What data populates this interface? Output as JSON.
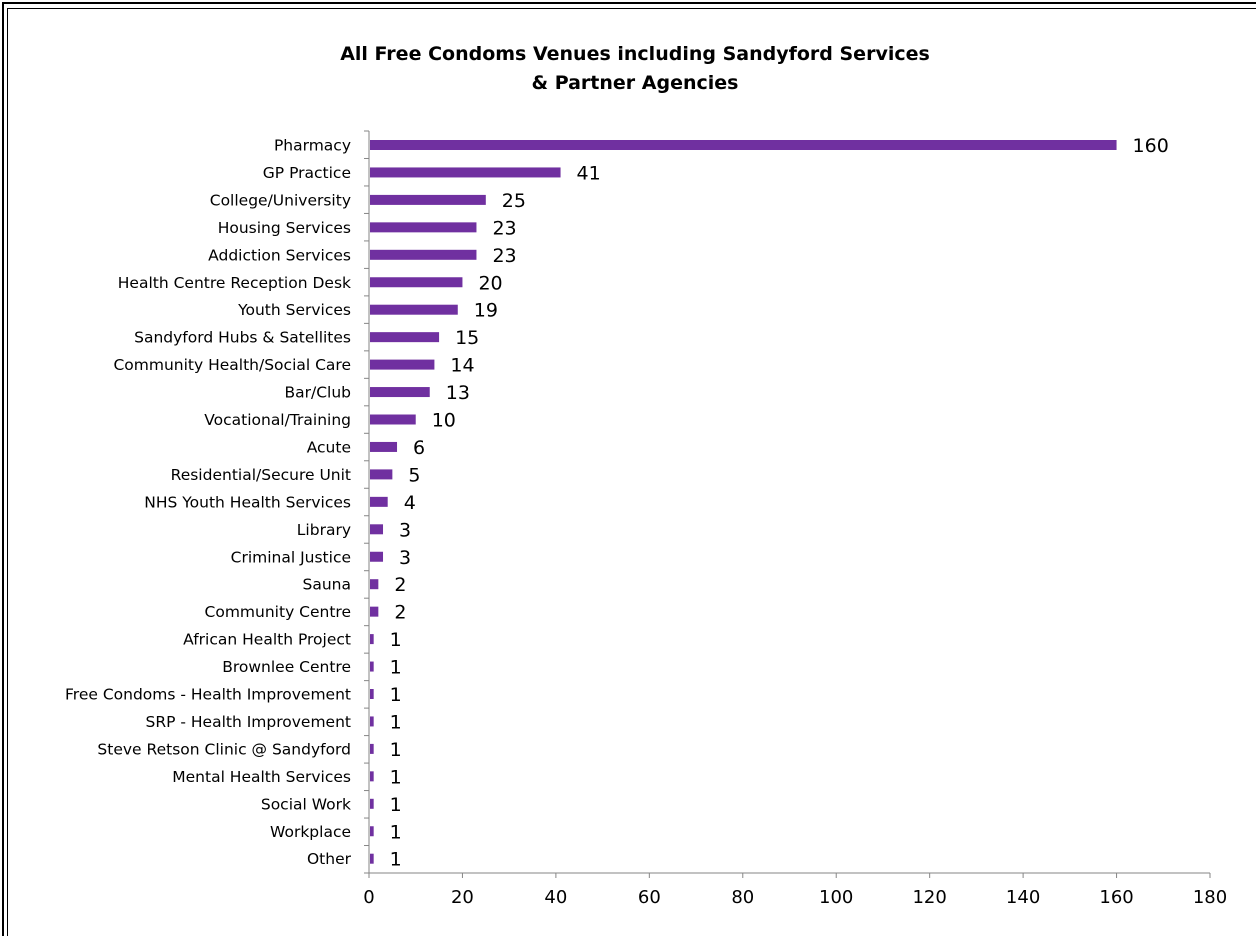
{
  "chart_data": {
    "type": "bar",
    "orientation": "horizontal",
    "title_line1": "All Free Condoms Venues including Sandyford Services",
    "title_line2": "& Partner Agencies",
    "xlabel": "",
    "ylabel": "",
    "xlim": [
      0,
      180
    ],
    "x_ticks": [
      0,
      20,
      40,
      60,
      80,
      100,
      120,
      140,
      160,
      180
    ],
    "grid": false,
    "bar_color": "#7030A0",
    "categories": [
      "Pharmacy",
      "GP Practice",
      "College/University",
      "Housing Services",
      "Addiction Services",
      "Health Centre Reception Desk",
      "Youth Services",
      "Sandyford Hubs & Satellites",
      "Community Health/Social Care",
      "Bar/Club",
      "Vocational/Training",
      "Acute",
      "Residential/Secure Unit",
      "NHS Youth Health Services",
      "Library",
      "Criminal Justice",
      "Sauna",
      "Community Centre",
      "African Health Project",
      "Brownlee Centre",
      "Free Condoms - Health Improvement",
      "SRP - Health Improvement",
      "Steve Retson Clinic @ Sandyford",
      "Mental Health Services",
      "Social Work",
      "Workplace",
      "Other"
    ],
    "values": [
      160,
      41,
      25,
      23,
      23,
      20,
      19,
      15,
      14,
      13,
      10,
      6,
      5,
      4,
      3,
      3,
      2,
      2,
      1,
      1,
      1,
      1,
      1,
      1,
      1,
      1,
      1
    ]
  }
}
